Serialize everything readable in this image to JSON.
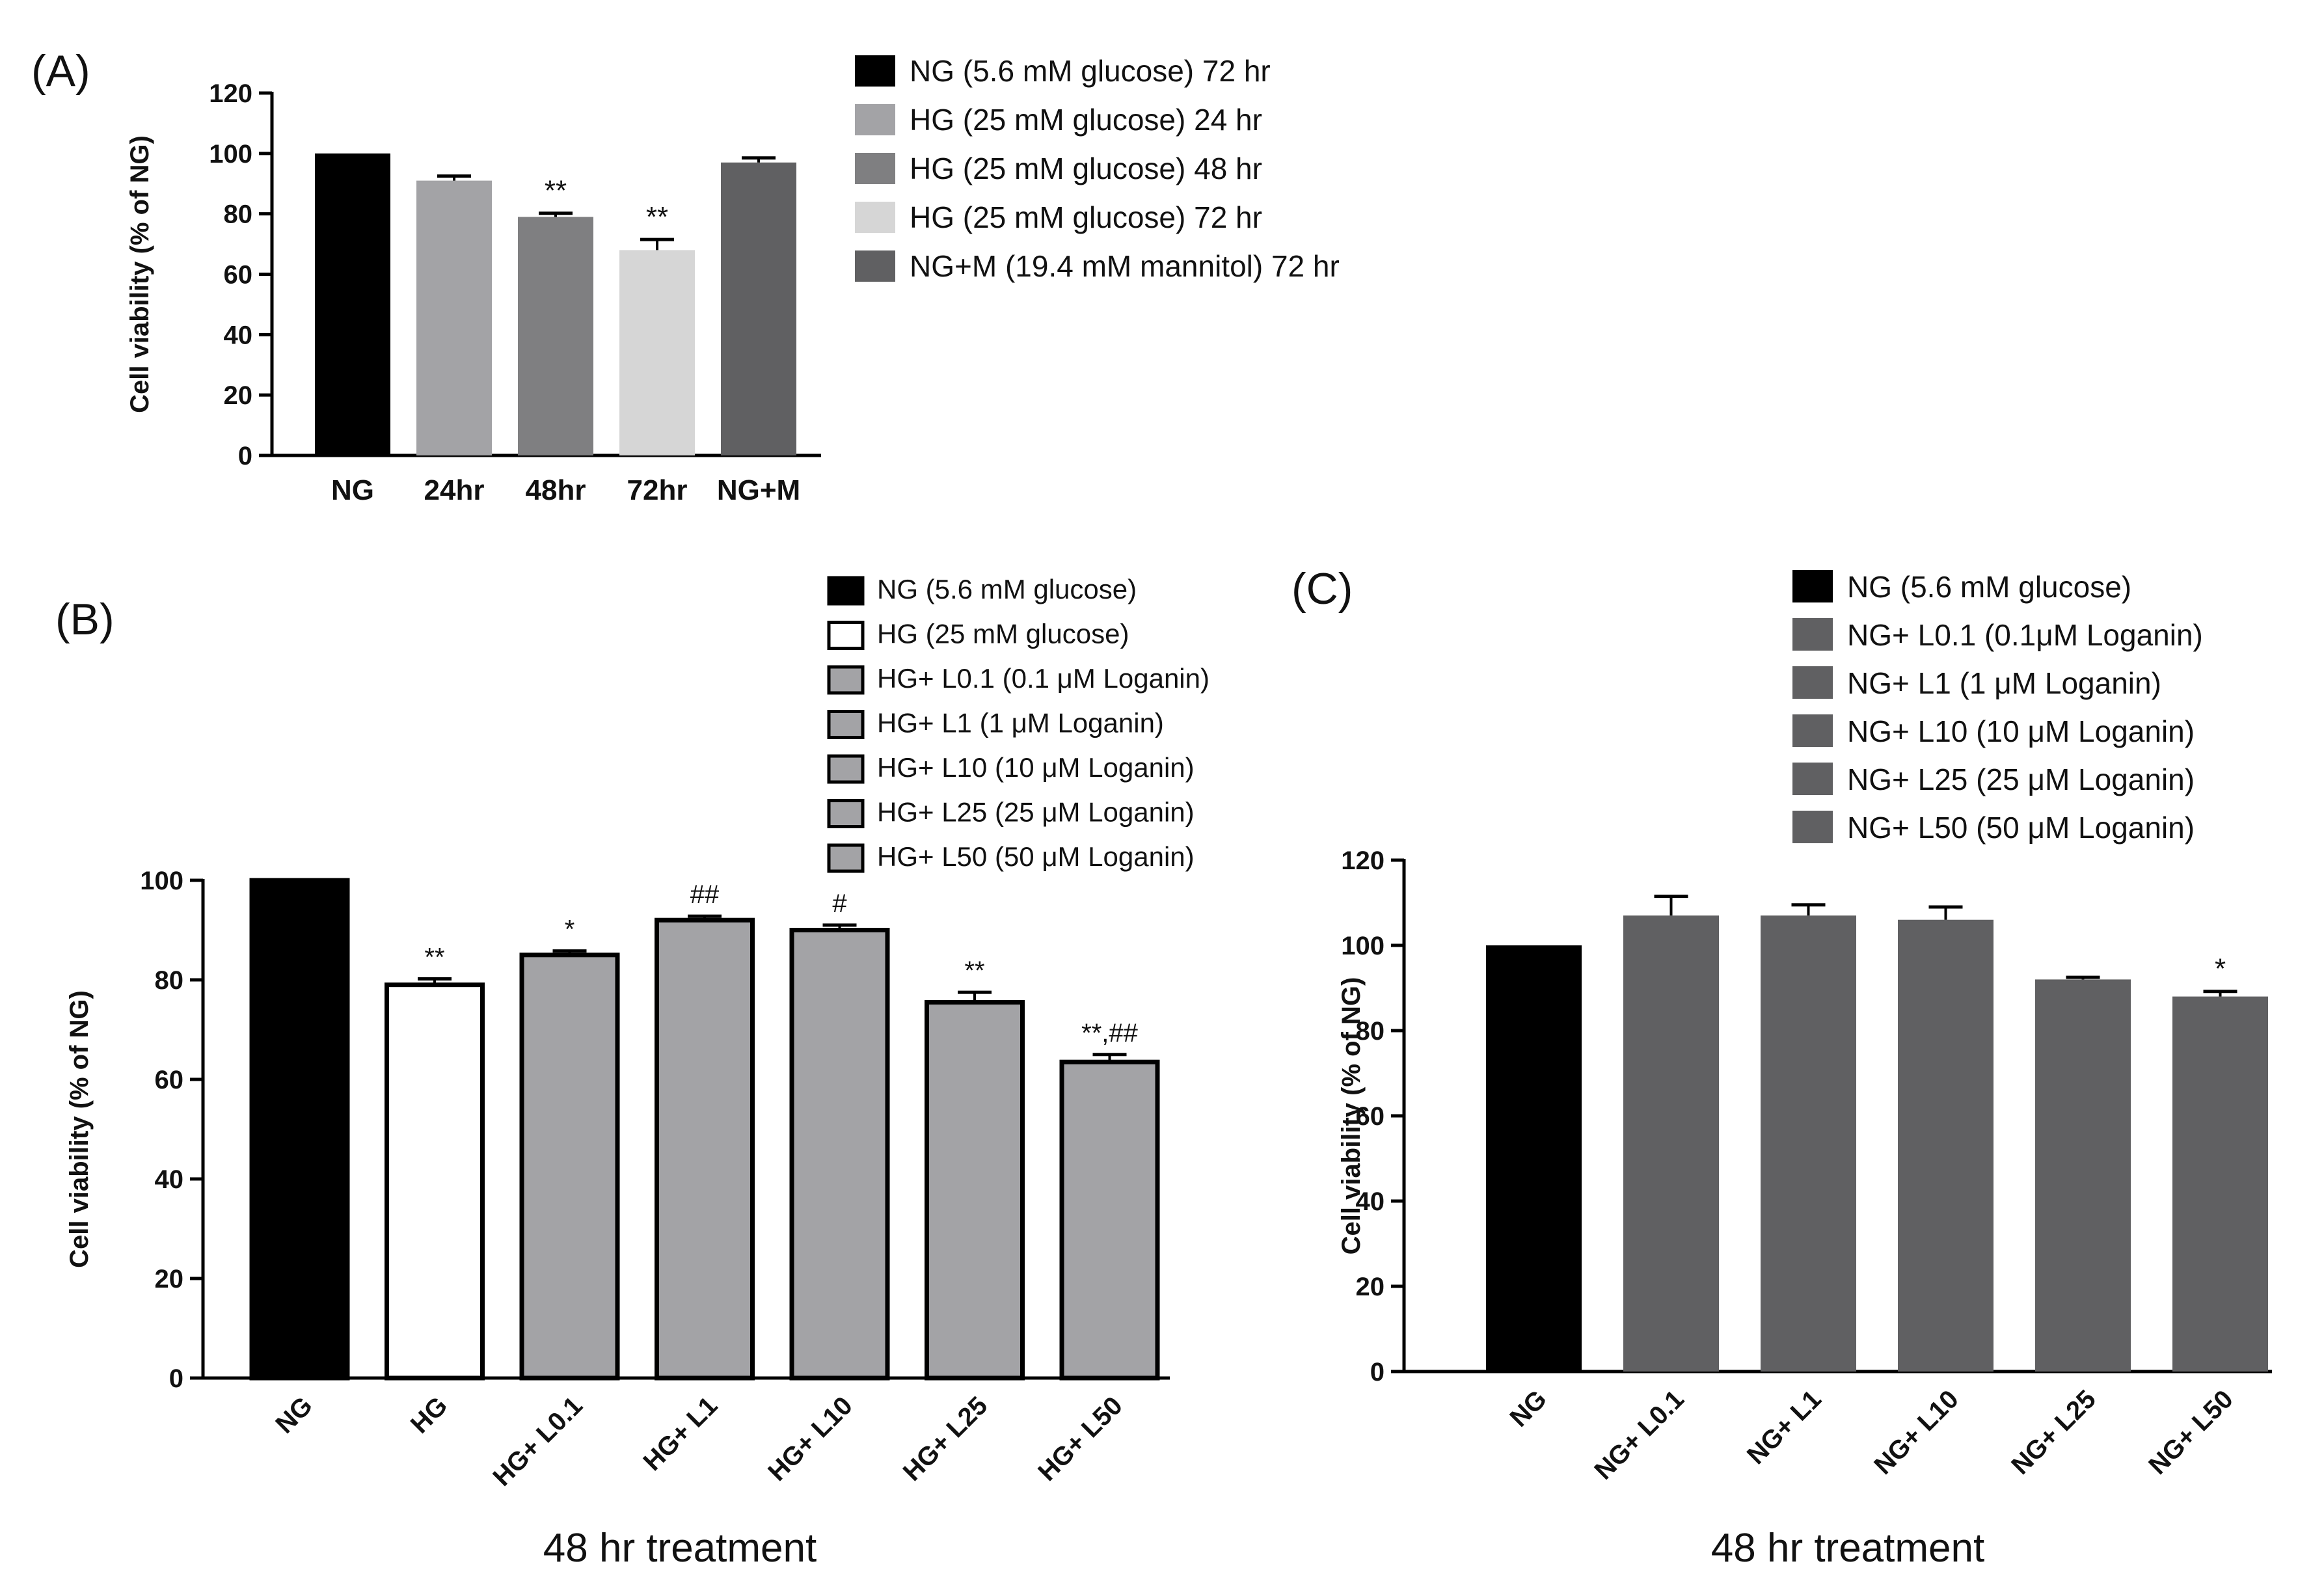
{
  "chart_data": [
    {
      "panel": "(A)",
      "type": "bar",
      "ylabel": "Cell viability (% of NG)",
      "xlabel": "",
      "ylim": [
        0,
        120
      ],
      "yticks": [
        "0",
        "20",
        "40",
        "60",
        "80",
        "100",
        "120"
      ],
      "categories": [
        "NG",
        "24hr",
        "48hr",
        "72hr",
        "NG+M"
      ],
      "values": [
        100,
        91,
        79,
        68,
        97
      ],
      "errors": [
        0,
        1.5,
        1.2,
        3.5,
        1.5
      ],
      "annotations": [
        "",
        "",
        "**",
        "**",
        ""
      ],
      "bar_colors": [
        "#000000",
        "#a3a3a6",
        "#7f7f81",
        "#d6d6d6",
        "#606062"
      ],
      "legend_position": "right",
      "legend": [
        {
          "label": "NG (5.6 mM glucose) 72 hr",
          "color": "#000000"
        },
        {
          "label": "HG (25 mM glucose) 24 hr",
          "color": "#a3a3a6"
        },
        {
          "label": "HG (25 mM glucose) 48 hr",
          "color": "#7f7f81"
        },
        {
          "label": "HG (25 mM glucose) 72 hr",
          "color": "#d6d6d6"
        },
        {
          "label": "NG+M (19.4 mM mannitol) 72 hr",
          "color": "#606062"
        }
      ]
    },
    {
      "panel": "(B)",
      "type": "bar",
      "ylabel": "Cell viability (% of NG)",
      "xlabel": "48 hr treatment",
      "ylim": [
        0,
        100
      ],
      "yticks": [
        "0",
        "20",
        "40",
        "60",
        "80",
        "100"
      ],
      "categories": [
        "NG",
        "HG",
        "HG+ L0.1",
        "HG+ L1",
        "HG+ L10",
        "HG+ L25",
        "HG+ L50"
      ],
      "values": [
        100,
        79,
        85,
        92,
        90,
        75.5,
        63.5
      ],
      "errors": [
        0,
        1.2,
        0.8,
        0.8,
        1.0,
        2.0,
        1.5
      ],
      "annotations": [
        "",
        "**",
        "*",
        "##",
        "#",
        "**",
        "**,##"
      ],
      "bar_colors": [
        "#000000",
        "#ffffff",
        "#a3a3a6",
        "#a3a3a6",
        "#a3a3a6",
        "#a3a3a6",
        "#a3a3a6"
      ],
      "legend_position": "top-right",
      "legend": [
        {
          "label": "NG (5.6 mM glucose)",
          "color": "#000000"
        },
        {
          "label": "HG (25 mM glucose)",
          "color": "#ffffff"
        },
        {
          "label": "HG+ L0.1 (0.1 μM Loganin)",
          "color": "#a3a3a6"
        },
        {
          "label": "HG+ L1 (1 μM Loganin)",
          "color": "#a3a3a6"
        },
        {
          "label": "HG+ L10 (10 μM Loganin)",
          "color": "#a3a3a6"
        },
        {
          "label": "HG+ L25 (25 μM Loganin)",
          "color": "#a3a3a6"
        },
        {
          "label": "HG+ L50 (50 μM Loganin)",
          "color": "#a3a3a6"
        }
      ]
    },
    {
      "panel": "(C)",
      "type": "bar",
      "ylabel": "Cell viability (% of NG)",
      "xlabel": "48 hr treatment",
      "ylim": [
        0,
        120
      ],
      "yticks": [
        "0",
        "20",
        "40",
        "60",
        "80",
        "100",
        "120"
      ],
      "categories": [
        "NG",
        "NG+ L0.1",
        "NG+ L1",
        "NG+ L10",
        "NG+ L25",
        "NG+ L50"
      ],
      "values": [
        100,
        107,
        107,
        106,
        92,
        88
      ],
      "errors": [
        0,
        4.5,
        2.5,
        3,
        0.5,
        1.2
      ],
      "annotations": [
        "",
        "",
        "",
        "",
        "",
        "*"
      ],
      "bar_colors": [
        "#000000",
        "#606062",
        "#606062",
        "#606062",
        "#606062",
        "#606062"
      ],
      "legend_position": "top-right",
      "legend": [
        {
          "label": "NG (5.6 mM glucose)",
          "color": "#000000"
        },
        {
          "label": "NG+ L0.1 (0.1μM Loganin)",
          "color": "#606062"
        },
        {
          "label": "NG+ L1 (1 μM Loganin)",
          "color": "#606062"
        },
        {
          "label": "NG+ L10 (10 μM Loganin)",
          "color": "#606062"
        },
        {
          "label": "NG+ L25 (25 μM Loganin)",
          "color": "#606062"
        },
        {
          "label": "NG+ L50 (50 μM Loganin)",
          "color": "#606062"
        }
      ]
    }
  ]
}
